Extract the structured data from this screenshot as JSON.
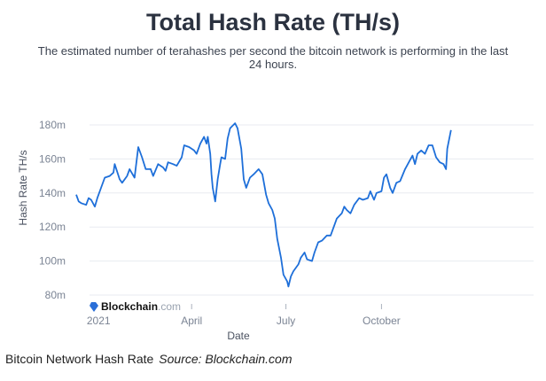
{
  "chart_data": {
    "type": "line",
    "title": "Total Hash Rate (TH/s)",
    "subtitle": "The estimated number of terahashes per second the bitcoin network is performing in the last 24 hours.",
    "xlabel": "Date",
    "ylabel": "Hash Rate TH/s",
    "ylim": [
      80,
      180
    ],
    "xlim": [
      -30,
      272
    ],
    "yticks": [
      {
        "v": 80,
        "label": "80m"
      },
      {
        "v": 100,
        "label": "100m"
      },
      {
        "v": 120,
        "label": "120m"
      },
      {
        "v": 140,
        "label": "140m"
      },
      {
        "v": 160,
        "label": "160m"
      },
      {
        "v": 180,
        "label": "180m"
      }
    ],
    "xticks": [
      {
        "v": -12,
        "label": "2021"
      },
      {
        "v": 63,
        "label": "April"
      },
      {
        "v": 139,
        "label": "July"
      },
      {
        "v": 216,
        "label": "October"
      }
    ],
    "grid": true,
    "color": "#1e6fd9",
    "watermark": "Blockchain.com",
    "series": [
      {
        "name": "Hash Rate",
        "x": [
          -30,
          -28,
          -26,
          -22,
          -20,
          -18,
          -15,
          -13,
          -10,
          -7,
          -3,
          0,
          1,
          5,
          7,
          11,
          13,
          17,
          20,
          23,
          26,
          30,
          32,
          36,
          40,
          42,
          44,
          48,
          51,
          55,
          57,
          61,
          65,
          67,
          70,
          73,
          75,
          76,
          78,
          79,
          80,
          82,
          84,
          86,
          87,
          90,
          92,
          94,
          98,
          100,
          103,
          105,
          107,
          110,
          113,
          117,
          120,
          123,
          125,
          128,
          130,
          132,
          135,
          137,
          140,
          141,
          143,
          145,
          149,
          151,
          154,
          156,
          160,
          162,
          165,
          168,
          172,
          175,
          178,
          180,
          184,
          186,
          188,
          191,
          194,
          198,
          201,
          205,
          207,
          210,
          212,
          216,
          218,
          220,
          223,
          225,
          228,
          231,
          235,
          238,
          241,
          243,
          245,
          248,
          251,
          254,
          257,
          260,
          263,
          266,
          268,
          269,
          272
        ],
        "y": [
          139,
          135,
          134,
          133,
          137,
          136,
          132,
          137,
          143,
          149,
          150,
          152,
          157,
          148,
          146,
          150,
          154,
          149,
          167,
          161,
          154,
          154,
          150,
          157,
          155,
          153,
          158,
          157,
          156,
          161,
          168,
          167,
          165,
          163,
          169,
          173,
          169,
          173,
          163,
          151,
          143,
          135,
          148,
          157,
          161,
          160,
          172,
          178,
          181,
          178,
          166,
          148,
          143,
          149,
          151,
          154,
          151,
          139,
          134,
          130,
          125,
          113,
          102,
          92,
          88,
          85,
          91,
          94,
          98,
          102,
          105,
          101,
          100,
          105,
          111,
          112,
          115,
          115,
          121,
          125,
          128,
          132,
          130,
          128,
          133,
          137,
          136,
          137,
          141,
          136,
          140,
          141,
          149,
          151,
          143,
          140,
          146,
          147,
          154,
          158,
          162,
          157,
          163,
          165,
          163,
          168,
          168,
          161,
          158,
          157,
          154,
          166,
          177
        ]
      }
    ]
  },
  "caption": {
    "text": "Bitcoin Network Hash Rate",
    "source": "Source: Blockchain.com"
  }
}
